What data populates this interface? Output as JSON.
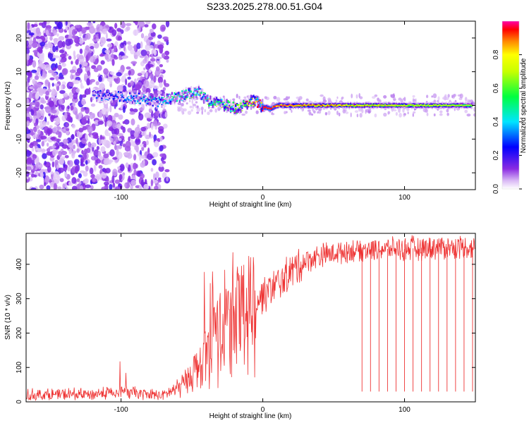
{
  "title": "S233.2025.278.00.51.G04",
  "colors": {
    "snr_line": "#ee3333",
    "axis": "#000000",
    "background": "#ffffff"
  },
  "chart_data": [
    {
      "type": "heatmap",
      "title": "S233.2025.278.00.51.G04",
      "xlabel": "Height of straight line (km)",
      "ylabel": "Frequency (Hz)",
      "xlim": [
        -167,
        150
      ],
      "ylim": [
        -25,
        25
      ],
      "x_ticks": [
        -100,
        0,
        100
      ],
      "y_ticks": [
        -20,
        -10,
        0,
        10,
        20
      ],
      "colorbar": {
        "label": "Normalized spectral amplitude",
        "range": [
          0,
          1
        ],
        "ticks": [
          0.0,
          0.2,
          0.4,
          0.6,
          0.8
        ],
        "colormap": "white-purple-blue-cyan-green-yellow-red-magenta"
      },
      "ridge": {
        "description": "dominant frequency track",
        "x": [
          -120,
          -100,
          -85,
          -75,
          -65,
          -55,
          -45,
          -38,
          -30,
          -25,
          -18,
          -12,
          -6,
          0,
          5,
          10,
          30,
          60,
          100,
          148
        ],
        "y": [
          3,
          2.5,
          2,
          1,
          2,
          3,
          4,
          1,
          0.5,
          0,
          -1,
          0.5,
          1.5,
          -0.5,
          -1,
          0,
          0,
          0,
          0,
          0
        ],
        "amplitude": [
          0.2,
          0.25,
          0.3,
          0.3,
          0.35,
          0.4,
          0.4,
          0.45,
          0.5,
          0.5,
          0.55,
          0.65,
          0.8,
          0.9,
          0.95,
          0.8,
          0.7,
          0.65,
          0.6,
          0.55
        ]
      }
    },
    {
      "type": "line",
      "xlabel": "Height of straight line (km)",
      "ylabel": "SNR (10 * v/v)",
      "xlim": [
        -167,
        150
      ],
      "ylim": [
        0,
        490
      ],
      "x_ticks": [
        -100,
        0,
        100
      ],
      "y_ticks": [
        0,
        100,
        200,
        300,
        400
      ],
      "series": [
        {
          "name": "SNR",
          "description": "noisy SNR trace; rises from ~20 near x=-70 to ~420 at x=30, with dropouts to ~30 beyond x=70",
          "x": [
            -167,
            -120,
            -100,
            -90,
            -80,
            -70,
            -60,
            -50,
            -40,
            -30,
            -20,
            -10,
            0,
            10,
            20,
            30,
            40,
            60,
            80,
            100,
            120,
            150
          ],
          "values": [
            20,
            22,
            30,
            25,
            20,
            20,
            40,
            80,
            150,
            200,
            250,
            280,
            310,
            340,
            380,
            410,
            425,
            440,
            445,
            445,
            450,
            450
          ]
        }
      ],
      "dropouts": {
        "x": [
          70,
          76,
          82,
          88,
          94,
          100,
          106,
          112,
          118,
          124,
          130,
          136,
          142,
          148
        ],
        "min_value": 30
      }
    }
  ]
}
